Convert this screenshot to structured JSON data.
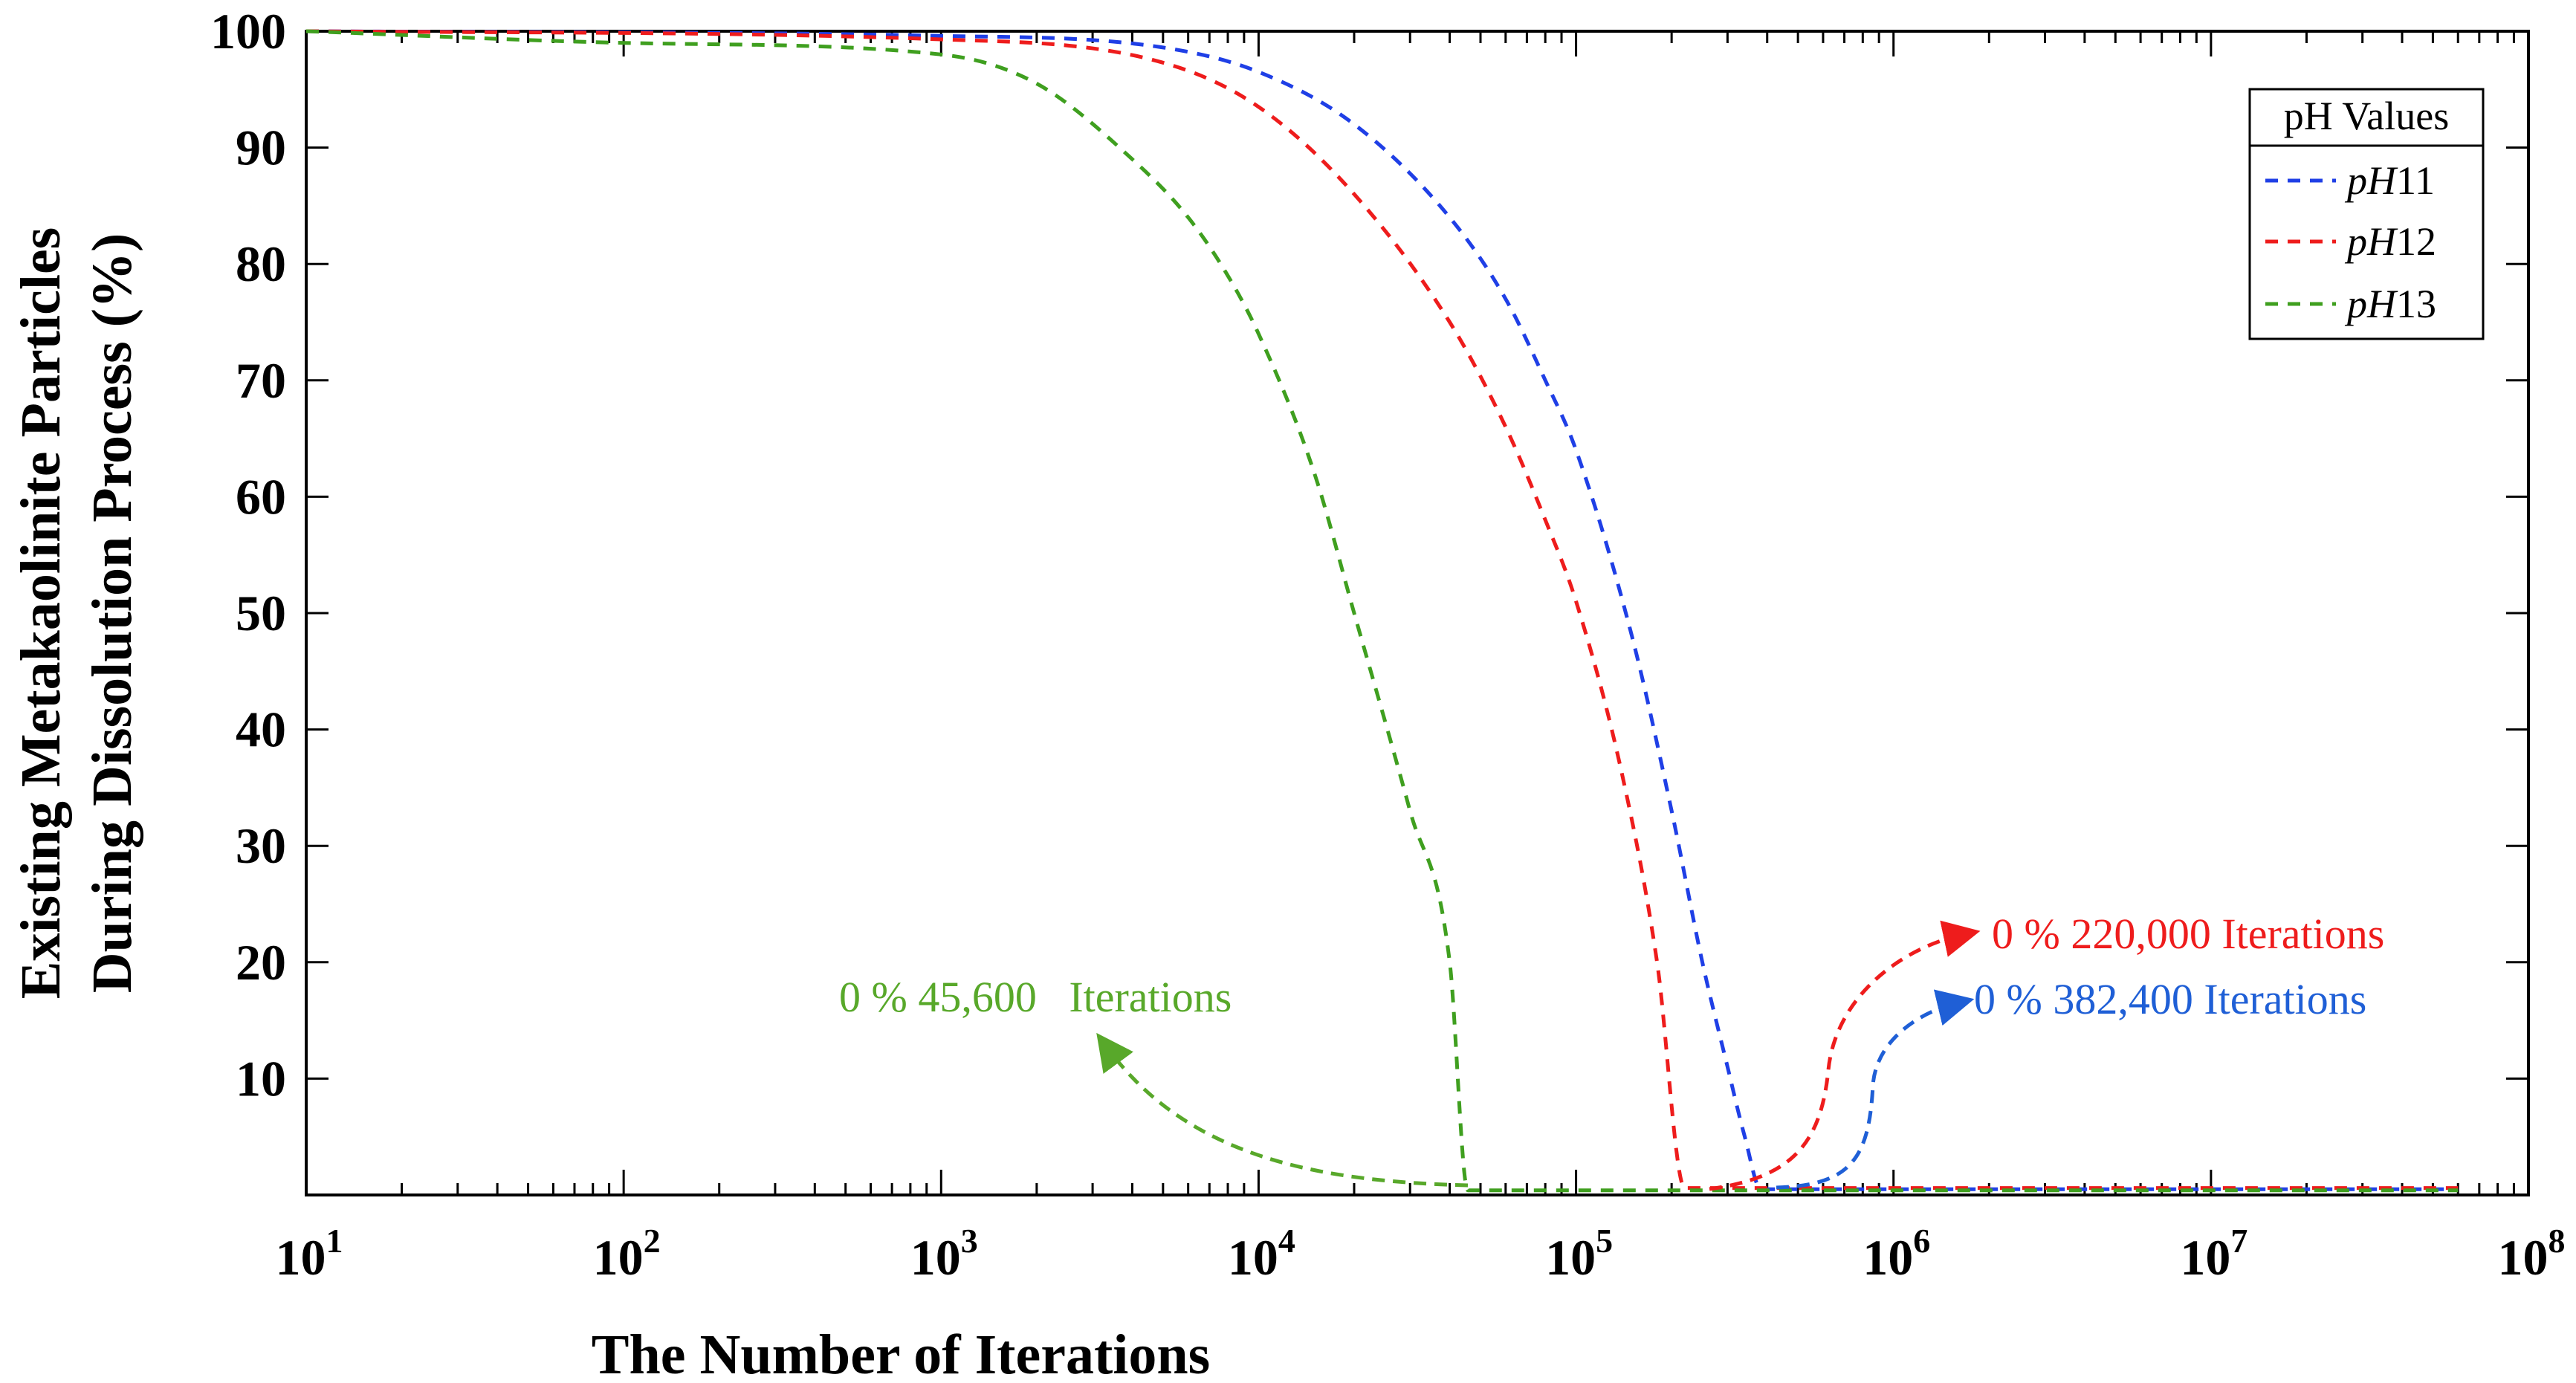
{
  "chart_data": {
    "type": "line",
    "title": "",
    "xlabel": "The Number of Iterations",
    "ylabel_lines": [
      "Existing Metakaolinite Particles",
      "During Dissolution Process (%)"
    ],
    "xscale": "log",
    "xlim": [
      10,
      100000000
    ],
    "ylim": [
      0,
      100
    ],
    "grid": false,
    "legend_placement": "top-right",
    "legend_title": "pH Values",
    "x_ticks": [
      {
        "base": "10",
        "exp": "1",
        "value": 10
      },
      {
        "base": "10",
        "exp": "2",
        "value": 100
      },
      {
        "base": "10",
        "exp": "3",
        "value": 1000
      },
      {
        "base": "10",
        "exp": "4",
        "value": 10000
      },
      {
        "base": "10",
        "exp": "5",
        "value": 100000
      },
      {
        "base": "10",
        "exp": "6",
        "value": 1000000
      },
      {
        "base": "10",
        "exp": "7",
        "value": 10000000
      },
      {
        "base": "10",
        "exp": "8",
        "value": 100000000
      }
    ],
    "y_ticks": [
      "10",
      "20",
      "30",
      "40",
      "50",
      "60",
      "70",
      "80",
      "90",
      "100"
    ],
    "series": [
      {
        "name": "pH11",
        "label_italic": "pH",
        "label_num": "11",
        "color": "#1f3fe6",
        "x": [
          10,
          1000,
          5000,
          10000,
          20000,
          40000,
          60000,
          80000,
          100000,
          150000,
          200000,
          250000,
          300000,
          340000,
          382400,
          500000,
          1000000,
          5000000,
          60000000
        ],
        "y": [
          100,
          99.6,
          98.6,
          96.5,
          92,
          84,
          77,
          70,
          64,
          48,
          33,
          20,
          11,
          5,
          0.5,
          0.5,
          0.5,
          0.5,
          0.5
        ]
      },
      {
        "name": "pH12",
        "label_italic": "pH",
        "label_num": "12",
        "color": "#ee1c1c",
        "x": [
          10,
          1000,
          5000,
          10000,
          20000,
          40000,
          60000,
          80000,
          100000,
          140000,
          180000,
          220000,
          300000,
          1000000,
          5000000,
          60000000
        ],
        "y": [
          100,
          99.3,
          97.3,
          93.5,
          86,
          75,
          66,
          58,
          51,
          36,
          20,
          0.6,
          0.6,
          0.6,
          0.6,
          0.6
        ]
      },
      {
        "name": "pH13",
        "label_italic": "pH",
        "label_num": "13",
        "color": "#3f9f1f",
        "x": [
          10,
          100,
          1000,
          2000,
          4000,
          6000,
          8000,
          10000,
          15000,
          20000,
          30000,
          40000,
          45600,
          60000,
          100000,
          1000000,
          10000000,
          60000000
        ],
        "y": [
          100,
          99,
          98,
          95.5,
          89,
          84,
          79,
          74,
          62,
          50,
          33,
          20,
          0.4,
          0.4,
          0.4,
          0.4,
          0.4,
          0.4
        ]
      }
    ],
    "annotations": [
      {
        "series": "pH13",
        "text": "0 % 45,600   Iterations",
        "color": "#58a82a",
        "anchor_x": 45600,
        "anchor_y": 1
      },
      {
        "series": "pH12",
        "text": "0 % 220,000 Iterations",
        "color": "#ee1c1c",
        "anchor_x": 220000,
        "anchor_y": 0.6
      },
      {
        "series": "pH11",
        "text": "0 % 382,400 Iterations",
        "color": "#1f5fd6",
        "anchor_x": 382400,
        "anchor_y": 0.5
      }
    ]
  }
}
